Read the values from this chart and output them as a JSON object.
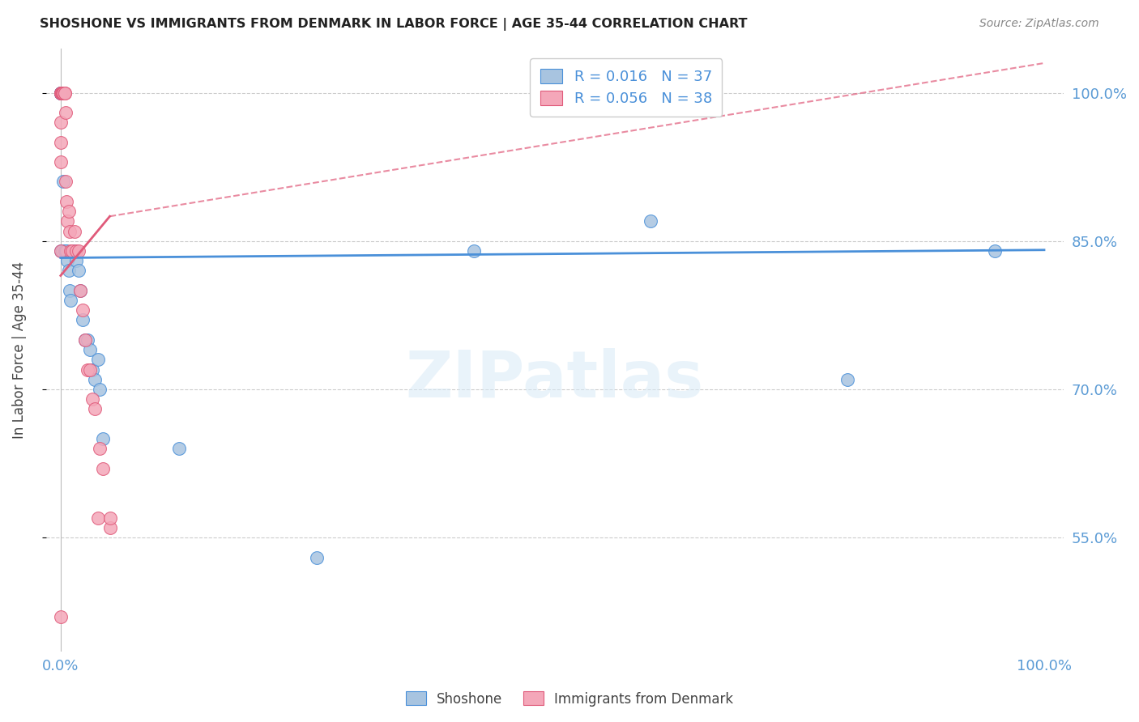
{
  "title": "SHOSHONE VS IMMIGRANTS FROM DENMARK IN LABOR FORCE | AGE 35-44 CORRELATION CHART",
  "source": "Source: ZipAtlas.com",
  "ylabel": "In Labor Force | Age 35-44",
  "legend_label_bottom": [
    "Shoshone",
    "Immigrants from Denmark"
  ],
  "r_blue": 0.016,
  "n_blue": 37,
  "r_pink": 0.056,
  "n_pink": 38,
  "blue_color": "#a8c4e0",
  "pink_color": "#f4a7b9",
  "trendline_blue": "#4a90d9",
  "trendline_pink": "#e05a7a",
  "axis_label_color": "#5b9bd5",
  "background_color": "#ffffff",
  "blue_scatter_x": [
    0.0,
    0.0,
    0.0,
    0.0,
    0.0,
    0.0,
    0.002,
    0.002,
    0.003,
    0.004,
    0.004,
    0.005,
    0.006,
    0.007,
    0.008,
    0.009,
    0.01,
    0.012,
    0.014,
    0.016,
    0.018,
    0.02,
    0.022,
    0.025,
    0.027,
    0.03,
    0.032,
    0.035,
    0.038,
    0.04,
    0.043,
    0.12,
    0.26,
    0.42,
    0.6,
    0.8,
    0.95
  ],
  "blue_scatter_y": [
    1.0,
    1.0,
    1.0,
    1.0,
    1.0,
    0.84,
    0.84,
    0.84,
    0.91,
    0.84,
    0.84,
    0.84,
    0.84,
    0.83,
    0.82,
    0.8,
    0.79,
    0.84,
    0.84,
    0.83,
    0.82,
    0.8,
    0.77,
    0.75,
    0.75,
    0.74,
    0.72,
    0.71,
    0.73,
    0.7,
    0.65,
    0.64,
    0.53,
    0.84,
    0.87,
    0.71,
    0.84
  ],
  "pink_scatter_x": [
    0.0,
    0.0,
    0.0,
    0.0,
    0.0,
    0.0,
    0.0,
    0.001,
    0.001,
    0.002,
    0.002,
    0.003,
    0.003,
    0.004,
    0.004,
    0.005,
    0.005,
    0.006,
    0.007,
    0.008,
    0.009,
    0.01,
    0.012,
    0.014,
    0.016,
    0.018,
    0.02,
    0.022,
    0.025,
    0.027,
    0.03,
    0.032,
    0.035,
    0.038,
    0.04,
    0.043,
    0.05,
    0.05
  ],
  "pink_scatter_y": [
    0.47,
    0.84,
    0.93,
    0.95,
    0.97,
    1.0,
    1.0,
    1.0,
    1.0,
    1.0,
    1.0,
    1.0,
    1.0,
    1.0,
    1.0,
    0.98,
    0.91,
    0.89,
    0.87,
    0.88,
    0.86,
    0.84,
    0.84,
    0.86,
    0.84,
    0.84,
    0.8,
    0.78,
    0.75,
    0.72,
    0.72,
    0.69,
    0.68,
    0.57,
    0.64,
    0.62,
    0.56,
    0.57
  ],
  "ytick_positions": [
    0.55,
    0.7,
    0.85,
    1.0
  ],
  "ytick_labels": [
    "55.0%",
    "70.0%",
    "85.0%",
    "100.0%"
  ],
  "xtick_positions": [
    0.0,
    0.25,
    0.5,
    0.75,
    1.0
  ],
  "xtick_labels": [
    "0.0%",
    "",
    "",
    "",
    "100.0%"
  ],
  "xlim": [
    -0.015,
    1.02
  ],
  "ylim": [
    0.435,
    1.045
  ]
}
